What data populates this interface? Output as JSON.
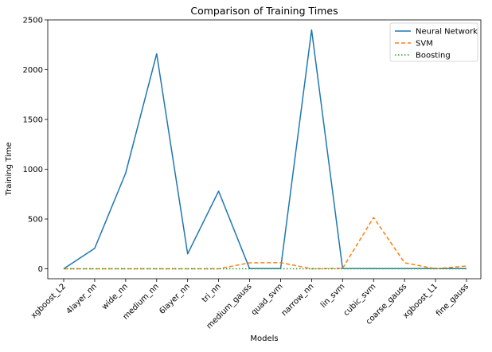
{
  "chart_data": {
    "type": "line",
    "title": "Comparison of Training Times",
    "xlabel": "Models",
    "ylabel": "Training Time",
    "categories": [
      "xgboost_L2",
      "4layer_nn",
      "wide_nn",
      "medium_nn",
      "6layer_nn",
      "tri_nn",
      "medium_gauss",
      "quad_svm",
      "narrow_nn",
      "lin_svm",
      "cubic_svm",
      "coarse_gauss",
      "xgboost_L1",
      "fine_gauss"
    ],
    "yticks": [
      0,
      500,
      1000,
      1500,
      2000,
      2500
    ],
    "ylim": [
      -100,
      2500
    ],
    "grid": false,
    "legend_position": "top-right",
    "series": [
      {
        "name": "Neural Network",
        "color": "#1f77b4",
        "style": "solid",
        "values": [
          0,
          205,
          960,
          2160,
          150,
          780,
          2,
          2,
          2400,
          3,
          2,
          2,
          2,
          2
        ]
      },
      {
        "name": "SVM",
        "color": "#ff7f0e",
        "style": "dashed",
        "values": [
          0,
          0,
          0,
          0,
          0,
          0,
          60,
          62,
          0,
          5,
          515,
          60,
          0,
          28
        ]
      },
      {
        "name": "Boosting",
        "color": "#2ca02c",
        "style": "dotted",
        "values": [
          0,
          0,
          0,
          0,
          0,
          0,
          0,
          0,
          0,
          0,
          0,
          0,
          0,
          0
        ]
      }
    ]
  }
}
